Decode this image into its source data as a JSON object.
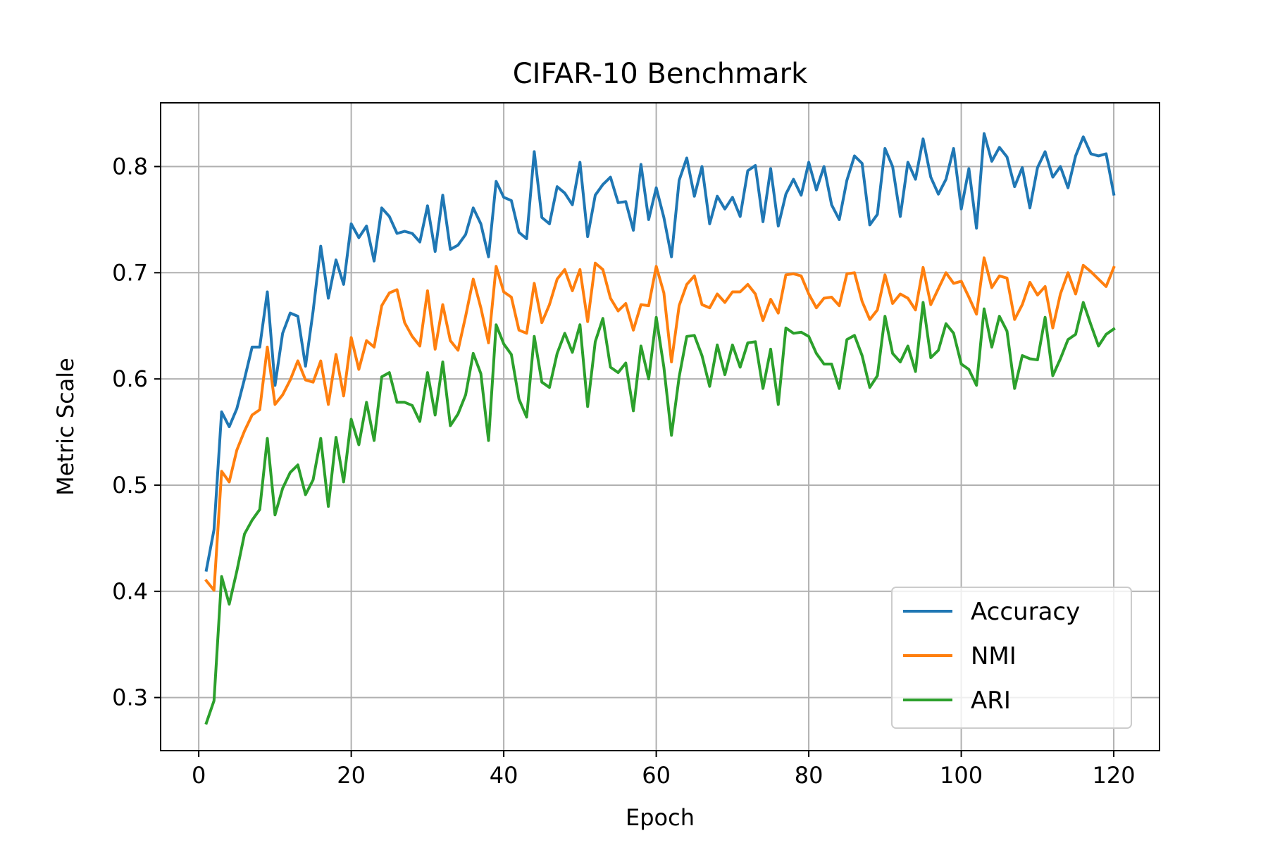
{
  "chart_data": {
    "type": "line",
    "title": "CIFAR-10 Benchmark",
    "xlabel": "Epoch",
    "ylabel": "Metric Scale",
    "xlim": [
      -5,
      126
    ],
    "ylim": [
      0.25,
      0.86
    ],
    "xticks": [
      0,
      20,
      40,
      60,
      80,
      100,
      120
    ],
    "yticks": [
      0.3,
      0.4,
      0.5,
      0.6,
      0.7,
      0.8
    ],
    "xtick_labels": [
      "0",
      "20",
      "40",
      "60",
      "80",
      "100",
      "120"
    ],
    "ytick_labels": [
      "0.3",
      "0.4",
      "0.5",
      "0.6",
      "0.7",
      "0.8"
    ],
    "grid": true,
    "legend_position": "lower-right",
    "x": [
      1,
      2,
      3,
      4,
      5,
      6,
      7,
      8,
      9,
      10,
      11,
      12,
      13,
      14,
      15,
      16,
      17,
      18,
      19,
      20,
      21,
      22,
      23,
      24,
      25,
      26,
      27,
      28,
      29,
      30,
      31,
      32,
      33,
      34,
      35,
      36,
      37,
      38,
      39,
      40,
      41,
      42,
      43,
      44,
      45,
      46,
      47,
      48,
      49,
      50,
      51,
      52,
      53,
      54,
      55,
      56,
      57,
      58,
      59,
      60,
      61,
      62,
      63,
      64,
      65,
      66,
      67,
      68,
      69,
      70,
      71,
      72,
      73,
      74,
      75,
      76,
      77,
      78,
      79,
      80,
      81,
      82,
      83,
      84,
      85,
      86,
      87,
      88,
      89,
      90,
      91,
      92,
      93,
      94,
      95,
      96,
      97,
      98,
      99,
      100,
      101,
      102,
      103,
      104,
      105,
      106,
      107,
      108,
      109,
      110,
      111,
      112,
      113,
      114,
      115,
      116,
      117,
      118,
      119,
      120
    ],
    "series": [
      {
        "name": "Accuracy",
        "color": "#1f77b4",
        "values": [
          0.42,
          0.458,
          0.569,
          0.555,
          0.572,
          0.6,
          0.63,
          0.63,
          0.682,
          0.594,
          0.643,
          0.662,
          0.659,
          0.612,
          0.664,
          0.725,
          0.676,
          0.712,
          0.689,
          0.746,
          0.733,
          0.744,
          0.711,
          0.761,
          0.753,
          0.737,
          0.739,
          0.737,
          0.729,
          0.763,
          0.72,
          0.773,
          0.722,
          0.726,
          0.736,
          0.761,
          0.746,
          0.715,
          0.786,
          0.771,
          0.768,
          0.738,
          0.732,
          0.814,
          0.752,
          0.746,
          0.781,
          0.775,
          0.764,
          0.804,
          0.734,
          0.773,
          0.783,
          0.79,
          0.766,
          0.767,
          0.74,
          0.802,
          0.75,
          0.78,
          0.752,
          0.715,
          0.787,
          0.808,
          0.772,
          0.8,
          0.746,
          0.772,
          0.76,
          0.771,
          0.753,
          0.796,
          0.801,
          0.748,
          0.798,
          0.744,
          0.774,
          0.788,
          0.773,
          0.804,
          0.778,
          0.8,
          0.764,
          0.75,
          0.787,
          0.81,
          0.803,
          0.745,
          0.755,
          0.817,
          0.8,
          0.753,
          0.804,
          0.788,
          0.826,
          0.79,
          0.774,
          0.788,
          0.817,
          0.76,
          0.798,
          0.742,
          0.831,
          0.805,
          0.818,
          0.809,
          0.781,
          0.799,
          0.761,
          0.799,
          0.814,
          0.79,
          0.8,
          0.78,
          0.81,
          0.828,
          0.812,
          0.81,
          0.812,
          0.774
        ]
      },
      {
        "name": "NMI",
        "color": "#ff7f0e",
        "values": [
          0.41,
          0.401,
          0.513,
          0.503,
          0.533,
          0.551,
          0.566,
          0.571,
          0.63,
          0.576,
          0.585,
          0.599,
          0.617,
          0.599,
          0.597,
          0.617,
          0.576,
          0.623,
          0.584,
          0.639,
          0.609,
          0.636,
          0.63,
          0.669,
          0.681,
          0.684,
          0.653,
          0.64,
          0.631,
          0.683,
          0.628,
          0.67,
          0.636,
          0.627,
          0.659,
          0.694,
          0.667,
          0.634,
          0.706,
          0.682,
          0.677,
          0.646,
          0.643,
          0.69,
          0.653,
          0.67,
          0.694,
          0.703,
          0.683,
          0.703,
          0.654,
          0.709,
          0.703,
          0.676,
          0.664,
          0.671,
          0.646,
          0.67,
          0.669,
          0.706,
          0.681,
          0.616,
          0.669,
          0.689,
          0.697,
          0.67,
          0.667,
          0.68,
          0.672,
          0.682,
          0.682,
          0.689,
          0.68,
          0.655,
          0.675,
          0.662,
          0.698,
          0.699,
          0.697,
          0.68,
          0.667,
          0.676,
          0.677,
          0.669,
          0.699,
          0.7,
          0.673,
          0.656,
          0.665,
          0.698,
          0.671,
          0.68,
          0.676,
          0.665,
          0.705,
          0.67,
          0.685,
          0.7,
          0.69,
          0.692,
          0.677,
          0.661,
          0.714,
          0.686,
          0.697,
          0.695,
          0.656,
          0.67,
          0.691,
          0.679,
          0.687,
          0.648,
          0.68,
          0.7,
          0.68,
          0.707,
          0.701,
          0.694,
          0.687,
          0.705
        ]
      },
      {
        "name": "ARI",
        "color": "#2ca02c",
        "values": [
          0.276,
          0.297,
          0.414,
          0.388,
          0.419,
          0.454,
          0.467,
          0.477,
          0.544,
          0.472,
          0.497,
          0.512,
          0.519,
          0.491,
          0.505,
          0.544,
          0.48,
          0.545,
          0.503,
          0.562,
          0.538,
          0.578,
          0.542,
          0.602,
          0.606,
          0.578,
          0.578,
          0.575,
          0.56,
          0.606,
          0.566,
          0.616,
          0.556,
          0.567,
          0.585,
          0.624,
          0.605,
          0.542,
          0.651,
          0.633,
          0.623,
          0.581,
          0.564,
          0.64,
          0.597,
          0.592,
          0.624,
          0.643,
          0.625,
          0.651,
          0.574,
          0.635,
          0.657,
          0.611,
          0.606,
          0.615,
          0.57,
          0.631,
          0.6,
          0.658,
          0.611,
          0.547,
          0.602,
          0.64,
          0.641,
          0.622,
          0.593,
          0.632,
          0.604,
          0.632,
          0.611,
          0.634,
          0.635,
          0.591,
          0.628,
          0.576,
          0.648,
          0.643,
          0.644,
          0.64,
          0.624,
          0.614,
          0.614,
          0.591,
          0.637,
          0.641,
          0.622,
          0.592,
          0.603,
          0.659,
          0.624,
          0.616,
          0.631,
          0.607,
          0.672,
          0.62,
          0.627,
          0.652,
          0.643,
          0.614,
          0.609,
          0.594,
          0.666,
          0.63,
          0.659,
          0.645,
          0.591,
          0.622,
          0.619,
          0.618,
          0.658,
          0.603,
          0.619,
          0.637,
          0.642,
          0.672,
          0.651,
          0.631,
          0.642,
          0.647
        ]
      }
    ]
  }
}
